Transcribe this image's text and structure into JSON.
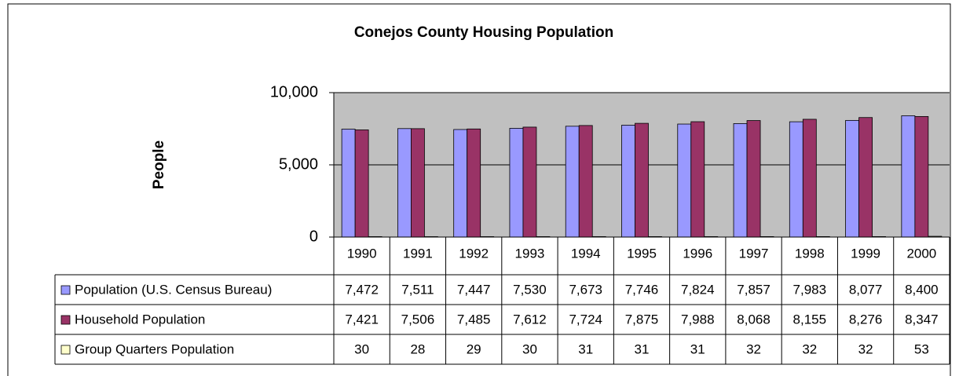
{
  "chart_data": {
    "type": "bar",
    "title": "Conejos County Housing Population",
    "y_label": "People",
    "categories": [
      "1990",
      "1991",
      "1992",
      "1993",
      "1994",
      "1995",
      "1996",
      "1997",
      "1998",
      "1999",
      "2000"
    ],
    "series": [
      {
        "name": "Population (U.S. Census Bureau)",
        "color": "#9999ff",
        "values": [
          7472,
          7511,
          7447,
          7530,
          7673,
          7746,
          7824,
          7857,
          7983,
          8077,
          8400
        ],
        "value_labels": [
          "7,472",
          "7,511",
          "7,447",
          "7,530",
          "7,673",
          "7,746",
          "7,824",
          "7,857",
          "7,983",
          "8,077",
          "8,400"
        ]
      },
      {
        "name": "Household Population",
        "color": "#993366",
        "values": [
          7421,
          7506,
          7485,
          7612,
          7724,
          7875,
          7988,
          8068,
          8155,
          8276,
          8347
        ],
        "value_labels": [
          "7,421",
          "7,506",
          "7,485",
          "7,612",
          "7,724",
          "7,875",
          "7,988",
          "8,068",
          "8,155",
          "8,276",
          "8,347"
        ]
      },
      {
        "name": "Group Quarters Population",
        "color": "#ffffcc",
        "values": [
          30,
          28,
          29,
          30,
          31,
          31,
          31,
          32,
          32,
          32,
          53
        ]
      }
    ],
    "ylim": [
      0,
      10000
    ],
    "yticks": [
      0,
      {
        "value": 5000,
        "label": "5,000"
      },
      {
        "value": 10000,
        "label": "10,000"
      }
    ],
    "grid": true,
    "plot_background": "#c0c0c0"
  }
}
